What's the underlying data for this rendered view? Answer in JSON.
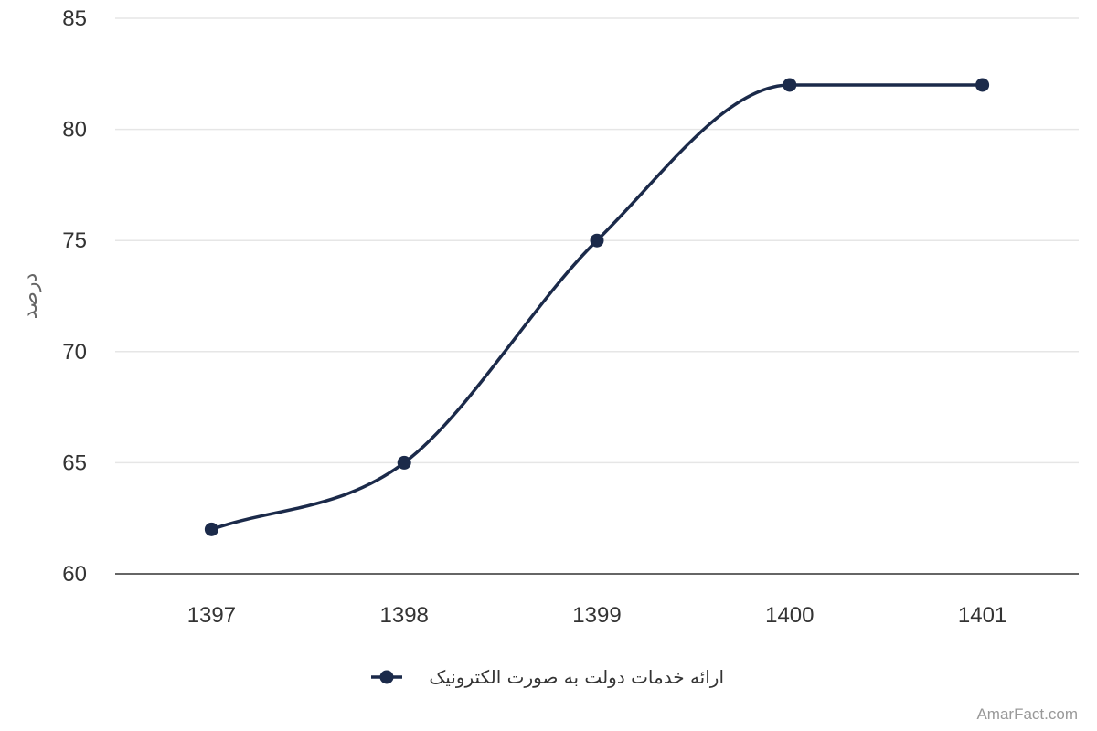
{
  "chart_data": {
    "type": "line",
    "x": [
      "1397",
      "1398",
      "1399",
      "1400",
      "1401"
    ],
    "series": [
      {
        "name": "ارائه خدمات دولت به صورت الکترونیک",
        "values": [
          62,
          65,
          75,
          82,
          82
        ],
        "color": "#1b2a4a"
      }
    ],
    "ylabel": "درصد",
    "xlabel": "",
    "title": "",
    "ylim": [
      60,
      85
    ],
    "yticks": [
      60,
      65,
      70,
      75,
      80,
      85
    ],
    "grid": true,
    "smooth": true,
    "legend_position": "bottom-center"
  },
  "credit": "AmarFact.com",
  "colors": {
    "series": "#1b2a4a",
    "grid": "#e6e6e6",
    "axis": "#333333"
  }
}
